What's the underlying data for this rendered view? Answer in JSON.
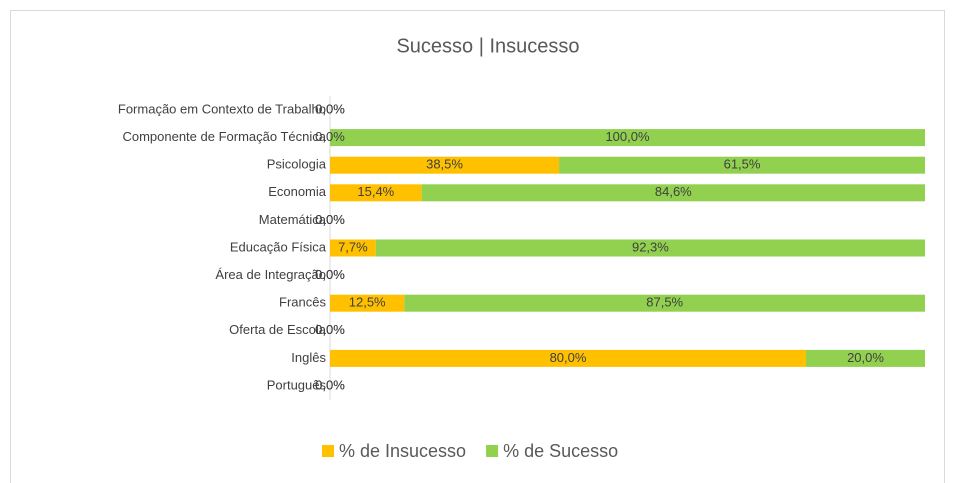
{
  "chart_data": {
    "type": "bar",
    "orientation": "horizontal",
    "stacked": true,
    "title": "Sucesso | Insucesso",
    "categories": [
      "Formação em Contexto de Trabalho",
      "Componente de Formação Técnica",
      "Psicologia",
      "Economia",
      "Matemática",
      "Educação Física",
      "Área de Integração",
      "Francês",
      "Oferta de Escola",
      "Inglês",
      "Português"
    ],
    "series": [
      {
        "name": "% de Insucesso",
        "color": "#FFC000",
        "values": [
          0,
          0,
          38.5,
          15.4,
          0,
          7.7,
          0,
          12.5,
          0,
          80,
          0
        ],
        "value_labels": [
          "0,0%",
          "0,0%",
          "38,5%",
          "15,4%",
          "0,0%",
          "7,7%",
          "0,0%",
          "12,5%",
          "0,0%",
          "80,0%",
          "0,0%"
        ]
      },
      {
        "name": "% de Sucesso",
        "color": "#92D050",
        "values": [
          0,
          100,
          61.5,
          84.6,
          0,
          92.3,
          0,
          87.5,
          0,
          20,
          0
        ],
        "value_labels": [
          "0,0%",
          "100,0%",
          "61,5%",
          "84,6%",
          "0,0%",
          "92,3%",
          "0,0%",
          "87,5%",
          "0,0%",
          "20,0%",
          "0,0%"
        ]
      }
    ],
    "xlim": [
      0,
      100
    ],
    "legend": "bottom"
  }
}
